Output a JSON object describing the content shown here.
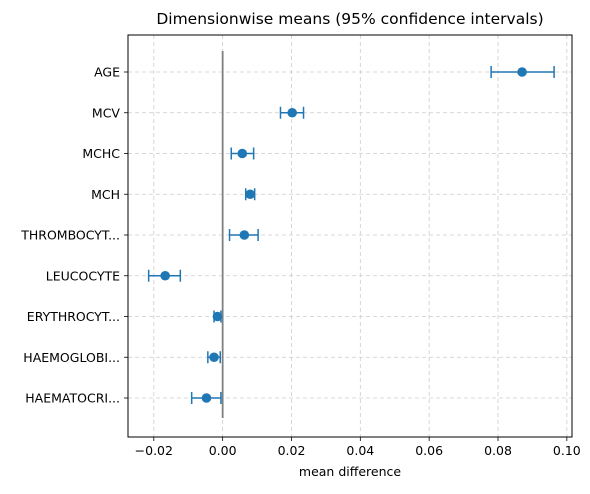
{
  "chart_data": {
    "type": "scatter",
    "title": "Dimensionwise means (95% confidence intervals)",
    "xlabel": "mean difference",
    "ylabel": "",
    "xlim": [
      -0.0275,
      0.1015
    ],
    "x_ticks": [
      -0.02,
      0.0,
      0.02,
      0.04,
      0.06,
      0.08,
      0.1
    ],
    "x_tick_labels": [
      "−0.02",
      "0.00",
      "0.02",
      "0.04",
      "0.06",
      "0.08",
      "0.10"
    ],
    "grid": true,
    "reference_line_x": 0,
    "colors": {
      "marker": "#1f77b4",
      "reference_line": "#808080",
      "grid": "#cccccc"
    },
    "categories": [
      "AGE",
      "MCV",
      "MCHC",
      "MCH",
      "THROMBOCYT...",
      "LEUCOCYTE",
      "ERYTHROCYT...",
      "HAEMOGLOBI...",
      "HAEMATOCRI..."
    ],
    "series": [
      {
        "means": [
          0.087,
          0.0202,
          0.0057,
          0.008,
          0.0063,
          -0.0167,
          -0.0015,
          -0.0025,
          -0.0047
        ],
        "lower": [
          0.078,
          0.0168,
          0.0025,
          0.0067,
          0.002,
          -0.0215,
          -0.0025,
          -0.0043,
          -0.009
        ],
        "upper": [
          0.0963,
          0.0235,
          0.009,
          0.0093,
          0.0103,
          -0.0123,
          -0.0005,
          -0.0007,
          -0.0005
        ]
      }
    ]
  }
}
